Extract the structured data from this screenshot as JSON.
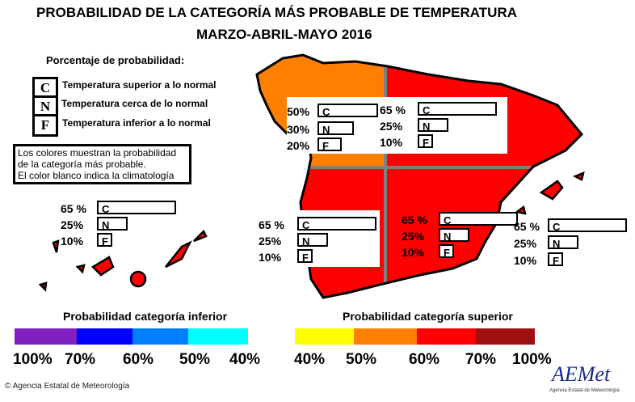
{
  "title": {
    "line1": "PROBABILIDAD DE LA CATEGORÍA MÁS PROBABLE DE TEMPERATURA",
    "line2": "MARZO-ABRIL-MAYO 2016"
  },
  "legend": {
    "heading": "Porcentaje de probabilidad:",
    "items": [
      {
        "letter": "C",
        "text": "Temperatura superior a lo normal"
      },
      {
        "letter": "N",
        "text": "Temperatura cerca de lo normal"
      },
      {
        "letter": "F",
        "text": "Temperatura inferior a lo normal"
      }
    ]
  },
  "note": {
    "lines": [
      "Los colores muestran la probabilidad",
      "de la categoría más probable.",
      "El color blanco indica la climatología"
    ]
  },
  "regions": [
    {
      "name": "noroeste",
      "color": "#ff8000",
      "values": [
        "50%",
        "30%",
        "20%"
      ],
      "probs": [
        50,
        30,
        20
      ]
    },
    {
      "name": "noreste",
      "color": "#ff0000",
      "values": [
        "65 %",
        "25%",
        "10%"
      ],
      "probs": [
        65,
        25,
        10
      ]
    },
    {
      "name": "suroeste",
      "color": "#ff0000",
      "values": [
        "65 %",
        "25%",
        "10%"
      ],
      "probs": [
        65,
        25,
        10
      ]
    },
    {
      "name": "sureste",
      "color": "#ff0000",
      "values": [
        "65 %",
        "25%",
        "10%"
      ],
      "probs": [
        65,
        25,
        10
      ]
    },
    {
      "name": "baleares",
      "color": "#ff0000",
      "values": [
        "65 %",
        "25%",
        "10%"
      ],
      "probs": [
        65,
        25,
        10
      ]
    },
    {
      "name": "canarias",
      "color": "#ff0000",
      "values": [
        "65 %",
        "25%",
        "10%"
      ],
      "probs": [
        65,
        25,
        10
      ]
    }
  ],
  "letters": [
    "C",
    "N",
    "F"
  ],
  "scale_inferior": {
    "caption": "Probabilidad categoría inferior",
    "colors": [
      "#8020c0",
      "#0000ff",
      "#0080ff",
      "#00ffff"
    ],
    "labels": [
      "100%",
      "70%",
      "60%",
      "50%",
      "40%"
    ]
  },
  "scale_superior": {
    "caption": "Probabilidad categoría superior",
    "colors": [
      "#ffff00",
      "#ff8000",
      "#ff0000",
      "#a01010"
    ],
    "labels": [
      "40%",
      "50%",
      "60%",
      "70%",
      "100%"
    ]
  },
  "footer": {
    "copyright": "© Agencia Estatal de Meteorología",
    "logo": "AEMet",
    "logo_sub": "Agencia Estatal de Meteorología"
  }
}
